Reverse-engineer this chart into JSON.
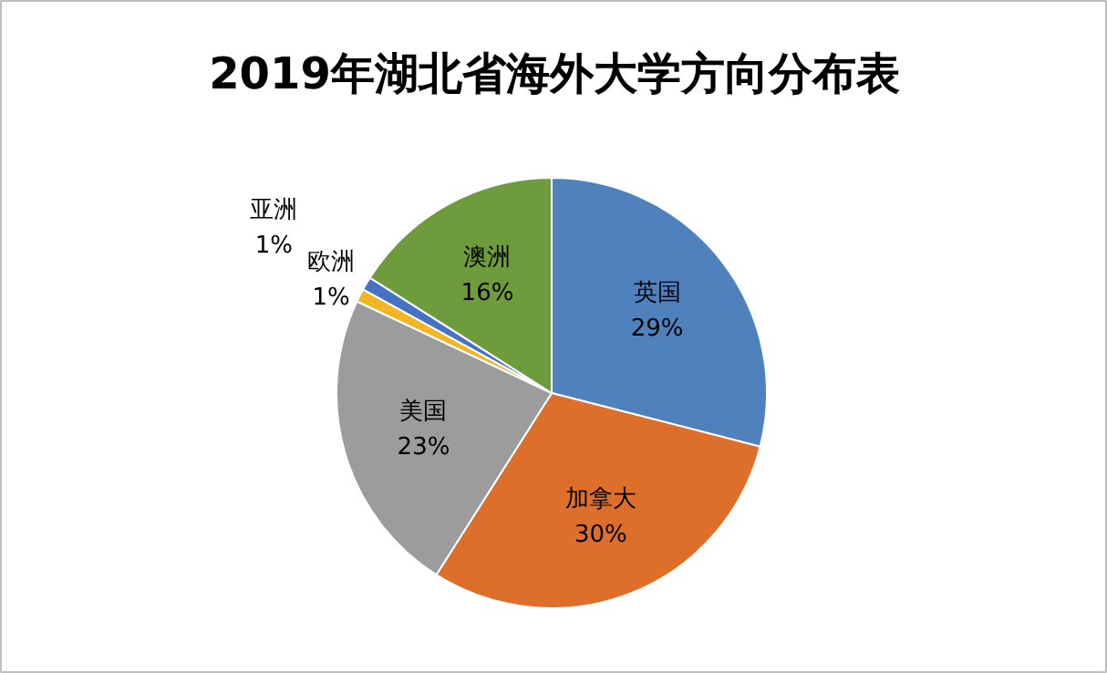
{
  "chart_data": {
    "type": "pie",
    "title": "2019年湖北省海外大学方向分布表",
    "categories": [
      "英国",
      "加拿大",
      "美国",
      "欧洲",
      "亚洲",
      "澳洲"
    ],
    "values": [
      29,
      30,
      23,
      1,
      1,
      16
    ],
    "value_labels": [
      "29%",
      "30%",
      "23%",
      "1%",
      "1%",
      "16%"
    ],
    "colors": [
      "#4f81bd",
      "#dd6f2b",
      "#9c9c9c",
      "#f2b625",
      "#4472c4",
      "#6e9c3c"
    ]
  }
}
